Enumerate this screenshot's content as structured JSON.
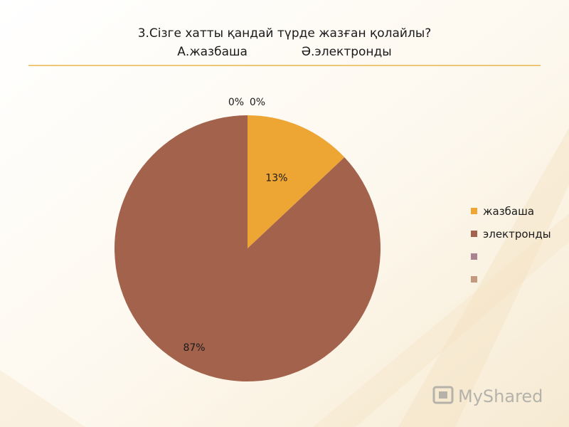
{
  "title": {
    "line1": "3.Сізге хатты қандай түрде жазған қолайлы?",
    "line2": "А.жазбаша              Ә.электронды"
  },
  "colors": {
    "accent_line": "#e8b64a",
    "background_stripe": "#f3e3c4"
  },
  "chart_data": {
    "type": "pie",
    "categories": [
      "жазбаша",
      "электронды",
      "",
      ""
    ],
    "values": [
      13,
      87,
      0,
      0
    ],
    "data_labels": [
      "13%",
      "87%",
      "0%",
      "0%"
    ],
    "colors": [
      "#eda534",
      "#a3624c",
      "#a9838f",
      "#c49a7e"
    ],
    "legend": "right"
  },
  "watermark": {
    "text": "MyShared"
  }
}
